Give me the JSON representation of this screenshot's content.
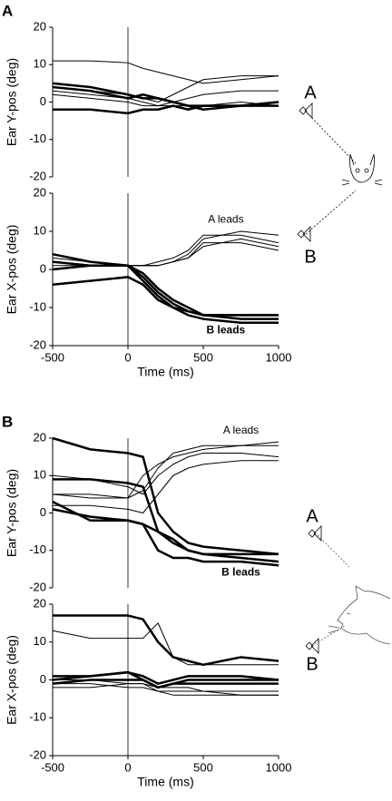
{
  "panel_labels": [
    "A",
    "B"
  ],
  "speaker_labels": [
    [
      "A",
      "B"
    ],
    [
      "A",
      "B"
    ]
  ],
  "chart_data": [
    {
      "type": "line",
      "ylabel": "Ear Y-pos (deg)",
      "xlim": [
        -500,
        1000
      ],
      "ylim": [
        -20,
        20
      ],
      "yticks": [
        -20,
        -10,
        0,
        10,
        20
      ],
      "vline": 0,
      "x": [
        -500,
        -250,
        0,
        100,
        200,
        300,
        400,
        500,
        750,
        1000
      ],
      "series": [
        {
          "color": "#000",
          "width": 1,
          "values": [
            11,
            11,
            10.5,
            9,
            8,
            7,
            6,
            5,
            6,
            7
          ]
        },
        {
          "color": "#000",
          "width": 1,
          "values": [
            4,
            3,
            2,
            1,
            0,
            2,
            4,
            6,
            7,
            7
          ]
        },
        {
          "color": "#000",
          "width": 1,
          "values": [
            3,
            2,
            1,
            0,
            -1,
            0,
            1,
            2,
            3,
            3
          ]
        },
        {
          "color": "#000",
          "width": 1,
          "values": [
            2,
            1,
            0,
            -1,
            -1,
            -1,
            -1,
            -1,
            0,
            -1
          ]
        },
        {
          "color": "#000",
          "width": 2.5,
          "values": [
            5,
            4,
            2,
            1,
            1,
            0,
            -1,
            -1,
            -1,
            -1
          ]
        },
        {
          "color": "#000",
          "width": 2.5,
          "values": [
            4,
            3,
            1,
            2,
            1,
            0,
            -1,
            -2,
            -1,
            0
          ]
        },
        {
          "color": "#000",
          "width": 2.5,
          "values": [
            -2,
            -2,
            -3,
            -2,
            -2,
            -1,
            -2,
            -1,
            -1,
            0
          ]
        }
      ]
    },
    {
      "type": "line",
      "ylabel": "Ear X-pos (deg)",
      "xlabel": "Time (ms)",
      "xlim": [
        -500,
        1000
      ],
      "xticks": [
        -500,
        0,
        500,
        1000
      ],
      "ylim": [
        -20,
        20
      ],
      "yticks": [
        -20,
        -10,
        0,
        10,
        20
      ],
      "vline": 0,
      "x": [
        -500,
        -250,
        0,
        100,
        200,
        300,
        400,
        500,
        750,
        1000
      ],
      "series": [
        {
          "color": "#000",
          "width": 1,
          "values": [
            3,
            2,
            1,
            1,
            1,
            2,
            4,
            8,
            10,
            9
          ]
        },
        {
          "color": "#000",
          "width": 1,
          "values": [
            2,
            1,
            1,
            1,
            2,
            3,
            5,
            9,
            9,
            7
          ]
        },
        {
          "color": "#000",
          "width": 1,
          "values": [
            1,
            1,
            1,
            1,
            1,
            2,
            3,
            6,
            8,
            6
          ]
        },
        {
          "color": "#000",
          "width": 1,
          "values": [
            4,
            2,
            1,
            1,
            1,
            2,
            3,
            7,
            7,
            5
          ]
        },
        {
          "color": "#000",
          "width": 2.5,
          "values": [
            4,
            2,
            1,
            -2,
            -6,
            -9,
            -11,
            -12,
            -12,
            -12
          ]
        },
        {
          "color": "#000",
          "width": 2.5,
          "values": [
            2,
            1,
            1,
            -1,
            -5,
            -8,
            -10,
            -12,
            -13,
            -13
          ]
        },
        {
          "color": "#000",
          "width": 2.5,
          "values": [
            0,
            1,
            1,
            -3,
            -7,
            -10,
            -12,
            -13,
            -14,
            -14
          ]
        },
        {
          "color": "#000",
          "width": 2.5,
          "values": [
            -4,
            -3,
            -2,
            -4,
            -8,
            -10,
            -11,
            -12,
            -12,
            -12
          ]
        }
      ],
      "annotations": [
        {
          "text": "A leads",
          "x": 650,
          "y": 13,
          "bold": false
        },
        {
          "text": "B leads",
          "x": 650,
          "y": -16,
          "bold": true
        }
      ]
    },
    {
      "type": "line",
      "ylabel": "Ear Y-pos (deg)",
      "xlim": [
        -500,
        1000
      ],
      "ylim": [
        -20,
        20
      ],
      "yticks": [
        -20,
        -10,
        0,
        10,
        20
      ],
      "vline": 0,
      "x": [
        -500,
        -250,
        0,
        100,
        200,
        300,
        400,
        500,
        750,
        1000
      ],
      "series": [
        {
          "color": "#000",
          "width": 1,
          "values": [
            5,
            5,
            4,
            6,
            12,
            16,
            17,
            18,
            18,
            18
          ]
        },
        {
          "color": "#000",
          "width": 1,
          "values": [
            10,
            9,
            7,
            5,
            10,
            13,
            15,
            16,
            16,
            15
          ]
        },
        {
          "color": "#000",
          "width": 1,
          "values": [
            2,
            2,
            1,
            0,
            5,
            10,
            12,
            13,
            14,
            14
          ]
        },
        {
          "color": "#000",
          "width": 1,
          "values": [
            5,
            4,
            4,
            10,
            13,
            15,
            16,
            17,
            18,
            19
          ]
        },
        {
          "color": "#000",
          "width": 2.5,
          "values": [
            20,
            17,
            16,
            15,
            0,
            -5,
            -8,
            -9,
            -10,
            -11
          ]
        },
        {
          "color": "#000",
          "width": 2.5,
          "values": [
            9,
            9,
            8,
            7,
            -5,
            -8,
            -10,
            -11,
            -11,
            -11
          ]
        },
        {
          "color": "#000",
          "width": 2.5,
          "values": [
            3,
            -2,
            -2,
            -3,
            -10,
            -12,
            -12,
            -13,
            -13,
            -14
          ]
        },
        {
          "color": "#000",
          "width": 2.5,
          "values": [
            1,
            -1,
            -2,
            -3,
            -5,
            -7,
            -10,
            -11,
            -12,
            -13
          ]
        }
      ],
      "annotations": [
        {
          "text": "A leads",
          "x": 750,
          "y": 22,
          "bold": false
        },
        {
          "text": "B leads",
          "x": 750,
          "y": -16,
          "bold": true
        }
      ]
    },
    {
      "type": "line",
      "ylabel": "Ear X-pos (deg)",
      "xlabel": "Time (ms)",
      "xlim": [
        -500,
        1000
      ],
      "xticks": [
        -500,
        0,
        500,
        1000
      ],
      "ylim": [
        -20,
        20
      ],
      "yticks": [
        -20,
        -10,
        0,
        10,
        20
      ],
      "vline": 0,
      "x": [
        -500,
        -250,
        0,
        100,
        200,
        300,
        400,
        500,
        750,
        1000
      ],
      "series": [
        {
          "color": "#000",
          "width": 2.5,
          "values": [
            17,
            17,
            17,
            16,
            10,
            6,
            5,
            4,
            6,
            5
          ]
        },
        {
          "color": "#000",
          "width": 2.5,
          "values": [
            1,
            1,
            2,
            1,
            -1,
            0,
            1,
            1,
            1,
            0
          ]
        },
        {
          "color": "#000",
          "width": 2.5,
          "values": [
            0,
            1,
            2,
            0,
            -2,
            -1,
            0,
            0,
            0,
            0
          ]
        },
        {
          "color": "#000",
          "width": 2.5,
          "values": [
            -1,
            0,
            0,
            0,
            -2,
            -1,
            -1,
            -1,
            -1,
            -1
          ]
        },
        {
          "color": "#000",
          "width": 1,
          "values": [
            13,
            11,
            11,
            11,
            15,
            6,
            4,
            4,
            4,
            4
          ]
        },
        {
          "color": "#000",
          "width": 1,
          "values": [
            0,
            0,
            -1,
            -1,
            -3,
            -3,
            -3,
            -3,
            -4,
            -4
          ]
        },
        {
          "color": "#000",
          "width": 1,
          "values": [
            -1,
            -1,
            -2,
            -2,
            -3,
            -4,
            -4,
            -4,
            -4,
            -4
          ]
        },
        {
          "color": "#000",
          "width": 1,
          "values": [
            -2,
            -2,
            -1,
            -1,
            -2,
            -2,
            -2,
            -3,
            -3,
            -3
          ]
        }
      ]
    }
  ]
}
